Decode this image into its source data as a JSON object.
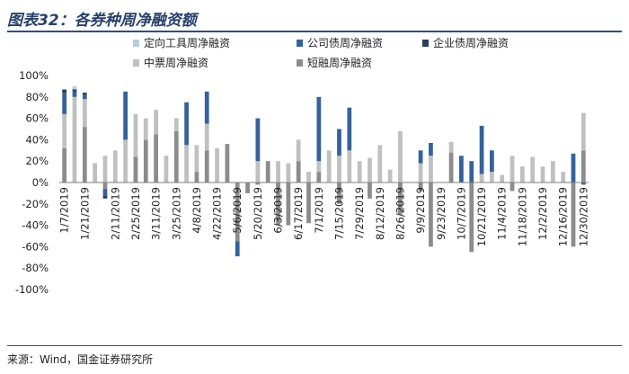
{
  "title": "图表32：各券种周净融资额",
  "source": "来源：Wind，国金证券研究所",
  "chart_data": {
    "type": "bar",
    "stacked": true,
    "ylim": [
      -100,
      100
    ],
    "yticks": [
      -100,
      -80,
      -60,
      -40,
      -20,
      0,
      20,
      40,
      60,
      80,
      100
    ],
    "ytick_labels": [
      "-100%",
      "-80%",
      "-60%",
      "-40%",
      "-20%",
      "0%",
      "20%",
      "40%",
      "60%",
      "80%",
      "100%"
    ],
    "categories": [
      "1/7/2019",
      "1/14/2019",
      "1/21/2019",
      "1/28/2019",
      "2/4/2019",
      "2/11/2019",
      "2/18/2019",
      "2/25/2019",
      "3/4/2019",
      "3/11/2019",
      "3/18/2019",
      "3/25/2019",
      "4/1/2019",
      "4/8/2019",
      "4/15/2019",
      "4/22/2019",
      "4/29/2019",
      "5/6/2019",
      "5/13/2019",
      "5/20/2019",
      "5/27/2019",
      "6/3/2019",
      "6/10/2019",
      "6/17/2019",
      "6/24/2019",
      "7/1/2019",
      "7/8/2019",
      "7/15/2019",
      "7/22/2019",
      "7/29/2019",
      "8/5/2019",
      "8/12/2019",
      "8/19/2019",
      "8/26/2019",
      "9/2/2019",
      "9/9/2019",
      "9/16/2019",
      "9/23/2019",
      "9/30/2019",
      "10/7/2019",
      "10/14/2019",
      "10/21/2019",
      "10/28/2019",
      "11/4/2019",
      "11/11/2019",
      "11/18/2019",
      "11/25/2019",
      "12/2/2019",
      "12/9/2019",
      "12/16/2019",
      "12/23/2019",
      "12/30/2019"
    ],
    "xtick_labels": [
      "1/7/2019",
      "1/21/2019",
      "2/11/2019",
      "2/25/2019",
      "3/11/2019",
      "3/25/2019",
      "4/8/2019",
      "4/22/2019",
      "5/6/2019",
      "5/20/2019",
      "6/3/2019",
      "6/17/2019",
      "7/1/2019",
      "7/15/2019",
      "7/29/2019",
      "8/12/2019",
      "8/26/2019",
      "9/9/2019",
      "9/23/2019",
      "10/7/2019",
      "10/21/2019",
      "11/4/2019",
      "11/18/2019",
      "12/2/2019",
      "12/16/2019",
      "12/30/2019"
    ],
    "series": [
      {
        "name": "短融周净融资",
        "color": "#8c8c8c",
        "values": [
          32,
          0,
          52,
          0,
          -6,
          0,
          0,
          24,
          40,
          45,
          0,
          48,
          0,
          10,
          30,
          0,
          36,
          -55,
          -10,
          -2,
          20,
          -40,
          -40,
          20,
          -38,
          10,
          0,
          -20,
          0,
          0,
          -15,
          0,
          0,
          -30,
          0,
          -8,
          -60,
          0,
          28,
          0,
          -65,
          0,
          0,
          0,
          -8,
          0,
          0,
          0,
          0,
          0,
          -60,
          30
        ]
      },
      {
        "name": "中票周净融资",
        "color": "#c0c0c0",
        "values": [
          32,
          80,
          26,
          18,
          25,
          30,
          40,
          40,
          20,
          23,
          25,
          12,
          35,
          25,
          25,
          32,
          0,
          0,
          0,
          20,
          0,
          20,
          18,
          20,
          10,
          10,
          30,
          25,
          30,
          20,
          23,
          35,
          12,
          48,
          0,
          18,
          25,
          0,
          10,
          0,
          0,
          8,
          10,
          7,
          25,
          15,
          24,
          15,
          20,
          10,
          0,
          35
        ]
      },
      {
        "name": "公司债周净融资",
        "color": "#35629a",
        "values": [
          20,
          5,
          4,
          0,
          -6,
          0,
          45,
          0,
          0,
          0,
          0,
          0,
          40,
          0,
          30,
          0,
          0,
          -14,
          0,
          40,
          0,
          0,
          0,
          0,
          0,
          60,
          0,
          25,
          40,
          0,
          0,
          0,
          0,
          0,
          0,
          12,
          12,
          0,
          0,
          25,
          20,
          45,
          20,
          0,
          0,
          0,
          0,
          0,
          0,
          0,
          27,
          -2
        ]
      },
      {
        "name": "企业债周净融资",
        "color": "#2b3f5a",
        "values": [
          3,
          2,
          2,
          0,
          -3,
          0,
          0,
          0,
          0,
          0,
          0,
          0,
          0,
          0,
          0,
          0,
          0,
          0,
          0,
          0,
          0,
          0,
          0,
          0,
          0,
          0,
          0,
          0,
          0,
          0,
          0,
          0,
          0,
          0,
          0,
          0,
          0,
          0,
          0,
          0,
          0,
          0,
          0,
          0,
          0,
          0,
          0,
          0,
          0,
          0,
          0,
          0
        ]
      },
      {
        "name": "定向工具周净融资",
        "color": "#b7cbe3",
        "values": [
          0,
          3,
          0,
          0,
          0,
          0,
          0,
          0,
          0,
          0,
          0,
          0,
          0,
          0,
          0,
          0,
          0,
          0,
          0,
          0,
          0,
          0,
          0,
          0,
          0,
          0,
          0,
          0,
          0,
          0,
          0,
          0,
          0,
          0,
          0,
          0,
          0,
          0,
          0,
          0,
          0,
          0,
          0,
          0,
          0,
          0,
          0,
          0,
          0,
          0,
          0,
          0
        ]
      }
    ],
    "legend": {
      "placement": "top",
      "order": [
        "定向工具周净融资",
        "公司债周净融资",
        "企业债周净融资",
        "中票周净融资",
        "短融周净融资"
      ]
    },
    "grid": false
  }
}
